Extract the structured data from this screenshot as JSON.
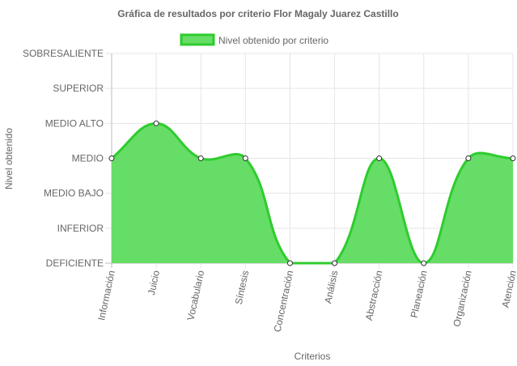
{
  "chart_data": {
    "type": "area",
    "title": "Gráfica de resultados por criterio Flor Magaly Juarez Castillo",
    "xlabel": "Criterios",
    "ylabel": "Nivel obtenido",
    "y_levels": [
      "DEFICIENTE",
      "INFERIOR",
      "MEDIO BAJO",
      "MEDIO",
      "MEDIO ALTO",
      "SUPERIOR",
      "SOBRESALIENTE"
    ],
    "ylim": [
      1,
      7
    ],
    "categories": [
      "Información",
      "Juicio",
      "Vocabulario",
      "Síntesis",
      "Concentración",
      "Análisis",
      "Abstracción",
      "Planeación",
      "Organización",
      "Atención"
    ],
    "series": [
      {
        "name": "Nivel obtenido por criterio",
        "values": [
          4,
          5,
          4,
          4,
          1,
          1,
          4,
          1,
          4,
          4
        ],
        "color": "#2ecc2e",
        "fill": "#66dd66"
      }
    ],
    "legend_position": "top",
    "grid": true
  }
}
